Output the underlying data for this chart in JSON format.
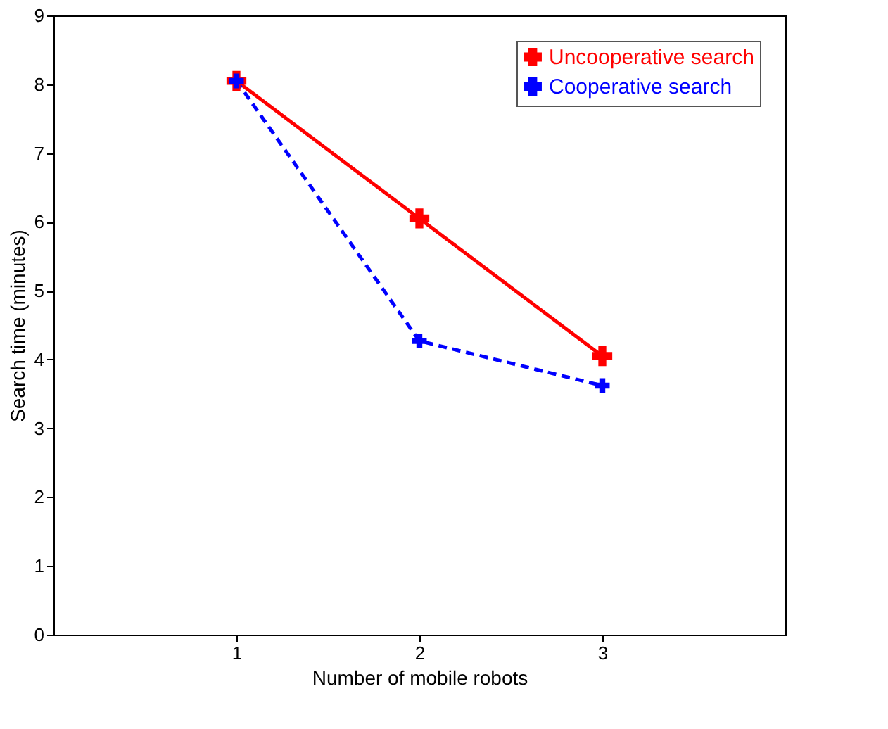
{
  "chart_data": {
    "type": "line",
    "xlabel": "Number of mobile robots",
    "ylabel": "Search time (minutes)",
    "x": [
      1,
      2,
      3
    ],
    "xlim": [
      0,
      4
    ],
    "xticks": [
      1,
      2,
      3
    ],
    "ylim": [
      0,
      9
    ],
    "yticks": [
      0,
      1,
      2,
      3,
      4,
      5,
      6,
      7,
      8,
      9
    ],
    "grid": false,
    "legend": "top right",
    "marker": "cross",
    "series": [
      {
        "name": "Uncooperative search",
        "color": "#ff0000",
        "line_style": "solid",
        "values": [
          8.05,
          6.05,
          4.05
        ]
      },
      {
        "name": "Cooperative search",
        "color": "#0000ff",
        "line_style": "dashed",
        "values": [
          8.05,
          4.27,
          3.62
        ]
      }
    ]
  }
}
